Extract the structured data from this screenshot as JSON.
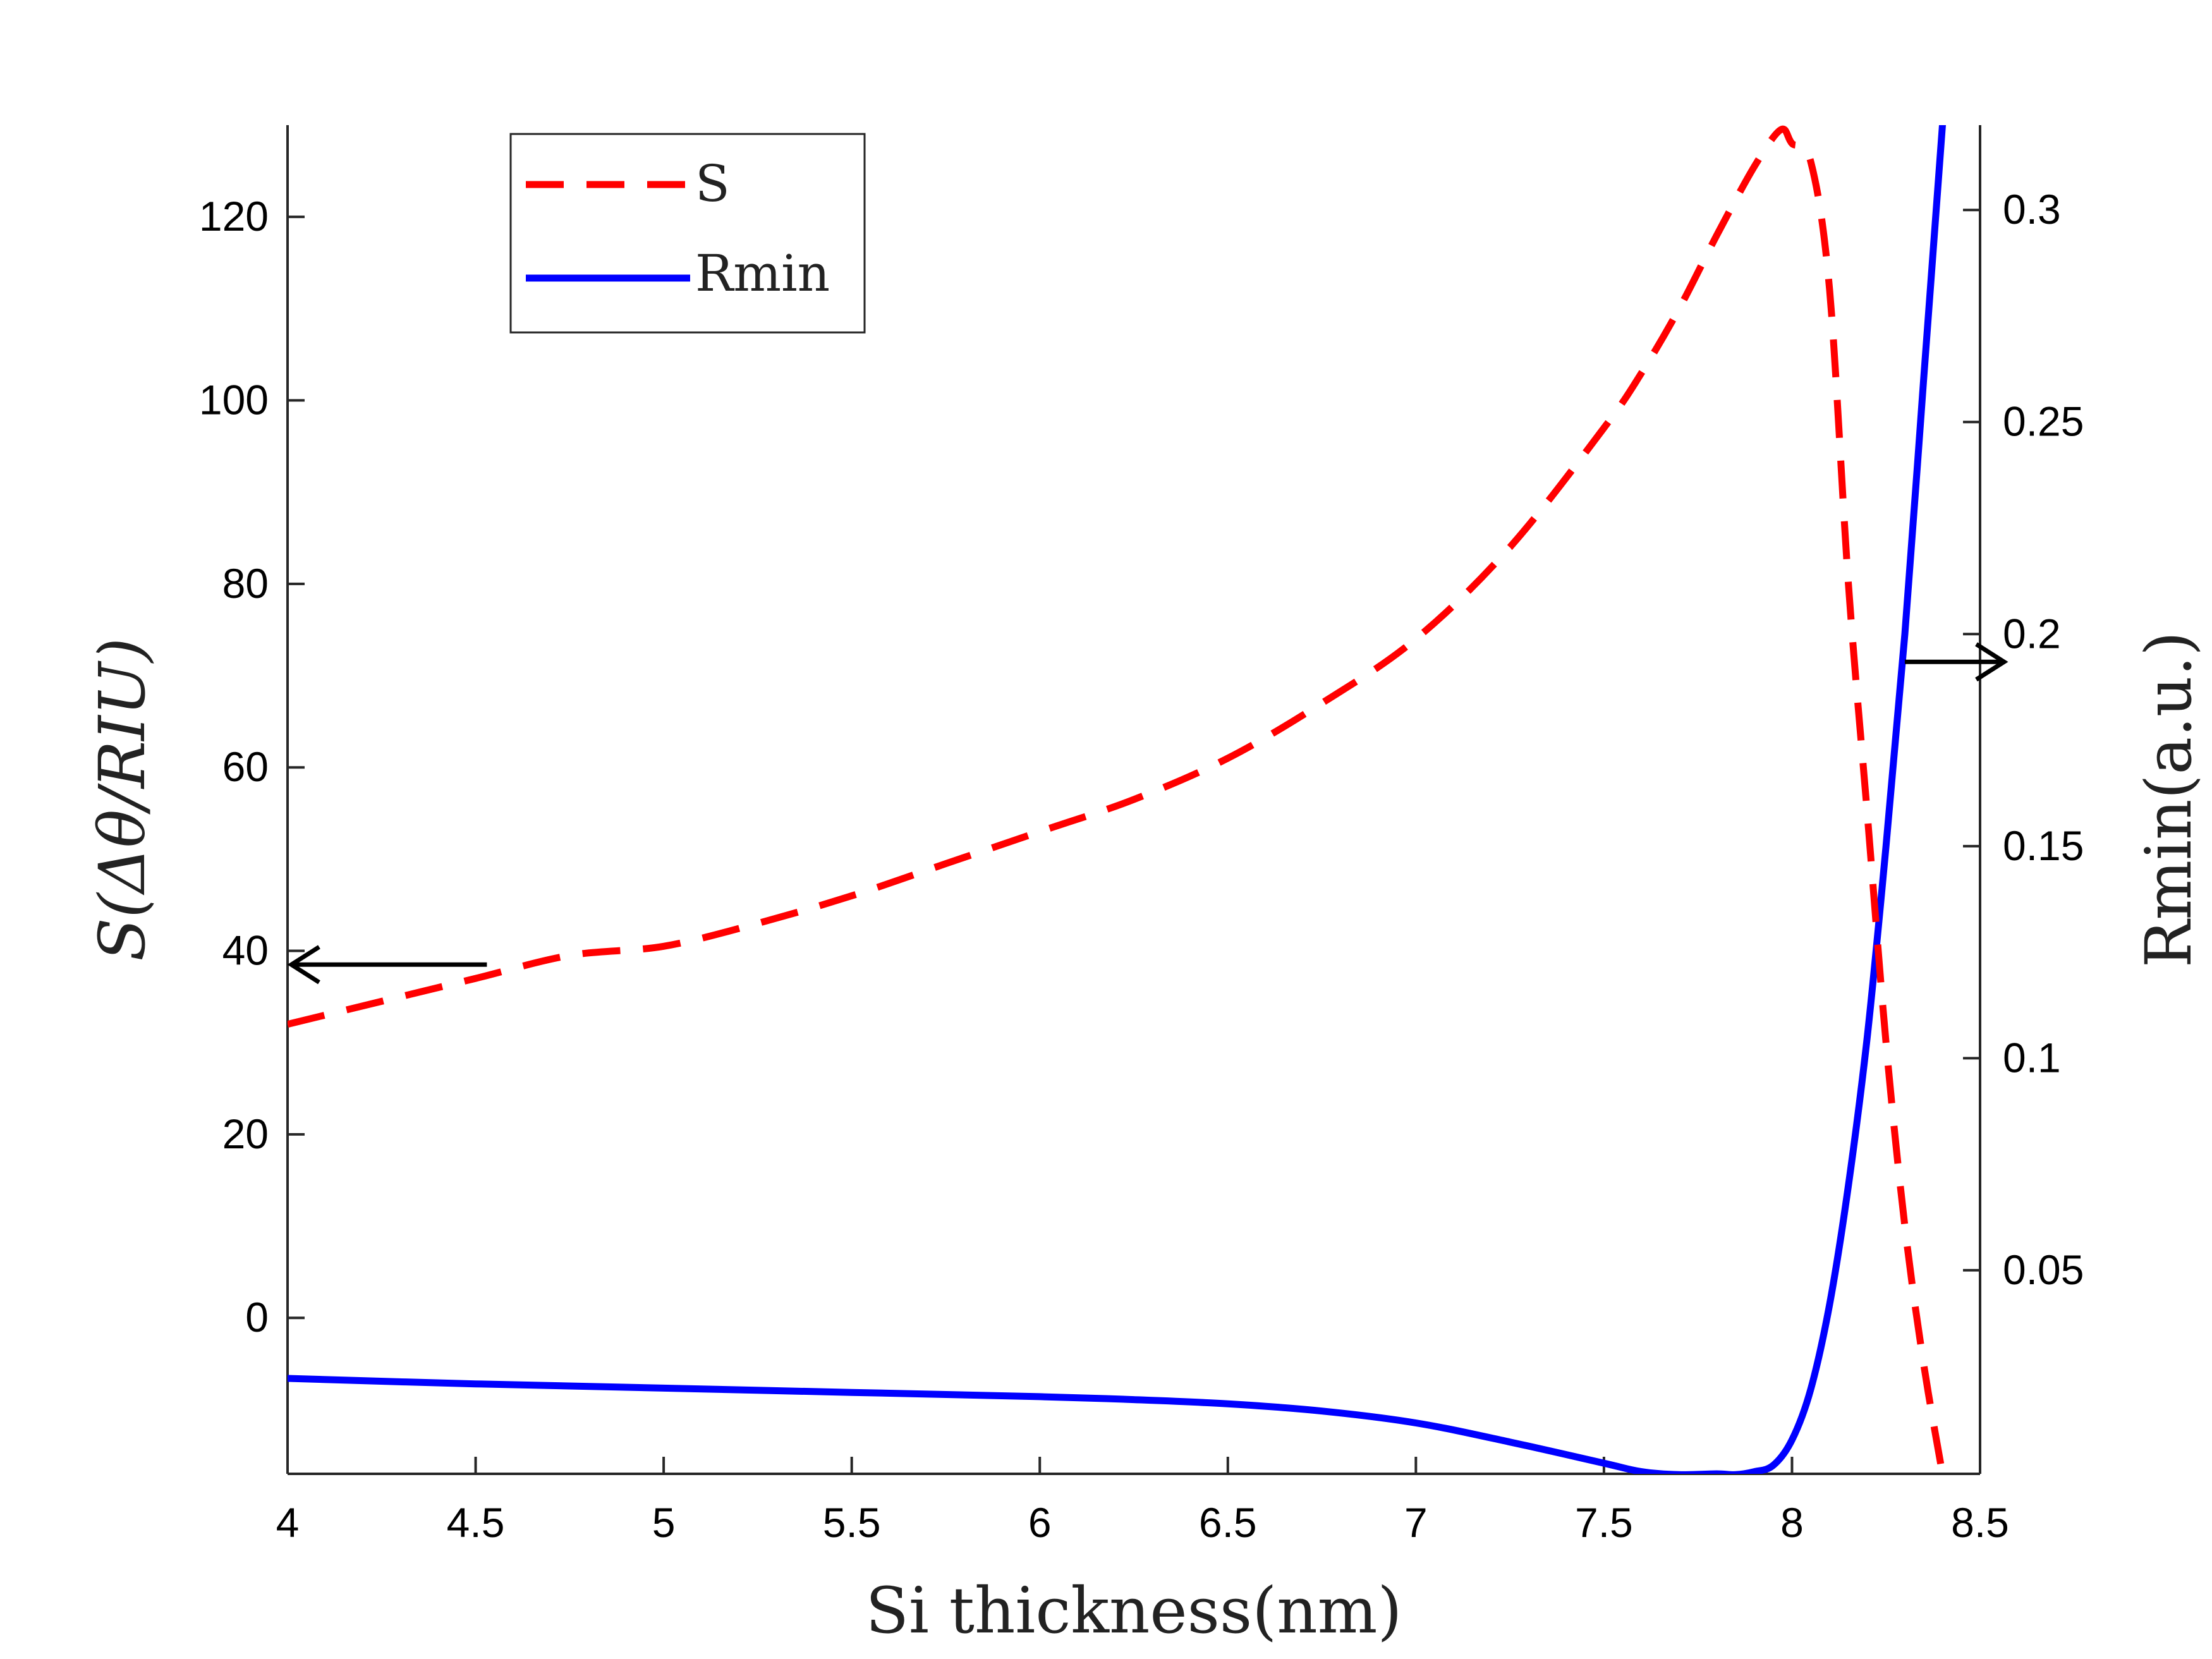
{
  "chart_data": {
    "type": "line",
    "title": "",
    "xlabel": "Si thickness(nm)",
    "ylabel_left": "S(Δθ/RIU)",
    "ylabel_right": "Rmin(a.u.)",
    "xlim": [
      4,
      8.5
    ],
    "ylim_left": [
      -17,
      130
    ],
    "ylim_right": [
      0.002,
      0.32
    ],
    "x_ticks": [
      "4",
      "4.5",
      "5",
      "5.5",
      "6",
      "6.5",
      "7",
      "7.5",
      "8",
      "8.5"
    ],
    "y_left_ticks": [
      "0",
      "20",
      "40",
      "60",
      "80",
      "100",
      "120"
    ],
    "y_right_ticks": [
      "0.05",
      "0.1",
      "0.15",
      "0.2",
      "0.25",
      "0.3"
    ],
    "grid": false,
    "legend_position": "top-left",
    "series": [
      {
        "name": "S",
        "axis": "left",
        "style": "dashed",
        "color": "#ff0000",
        "x": [
          4.0,
          4.25,
          4.5,
          4.75,
          5.0,
          5.25,
          5.5,
          5.75,
          6.0,
          6.25,
          6.5,
          6.75,
          7.0,
          7.25,
          7.5,
          7.6,
          7.7,
          7.8,
          7.9,
          7.97,
          8.0,
          8.05,
          8.1,
          8.15,
          8.2,
          8.25,
          8.3,
          8.35,
          8.4
        ],
        "values": [
          32,
          34.5,
          37,
          39.5,
          40.5,
          43,
          46,
          49.5,
          53,
          56.5,
          61,
          67,
          74,
          84,
          97,
          103,
          110,
          118,
          125.5,
          129.5,
          128,
          126,
          112,
          80,
          55,
          30,
          10,
          -5,
          -17
        ]
      },
      {
        "name": "Rmin",
        "axis": "right",
        "style": "solid",
        "color": "#0000ff",
        "x": [
          4.0,
          4.5,
          5.0,
          5.5,
          6.0,
          6.25,
          6.5,
          6.75,
          7.0,
          7.25,
          7.5,
          7.6,
          7.7,
          7.8,
          7.85,
          7.9,
          7.95,
          8.0,
          8.05,
          8.1,
          8.15,
          8.2,
          8.25,
          8.3,
          8.35,
          8.4
        ],
        "values": [
          0.0245,
          0.0232,
          0.0222,
          0.0212,
          0.0202,
          0.0195,
          0.0185,
          0.0168,
          0.014,
          0.0095,
          0.0045,
          0.0025,
          0.0018,
          0.002,
          0.0018,
          0.0025,
          0.004,
          0.01,
          0.022,
          0.042,
          0.07,
          0.105,
          0.15,
          0.2,
          0.26,
          0.32
        ]
      }
    ],
    "annotations": [
      {
        "type": "arrow",
        "direction": "left",
        "points_to": "left axis",
        "at": {
          "x_from": 4.53,
          "x_to": 4.0,
          "y_left": 38.5
        }
      },
      {
        "type": "arrow",
        "direction": "right",
        "points_to": "right axis",
        "at": {
          "x_from": 8.3,
          "x_to": 8.5,
          "y_left": 71.5
        }
      }
    ]
  }
}
